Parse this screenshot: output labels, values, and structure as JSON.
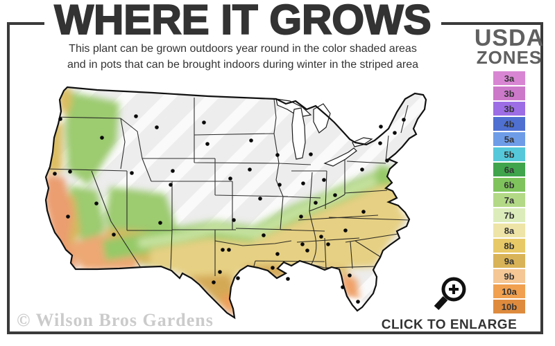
{
  "title": "WHERE IT GROWS",
  "subtitle": {
    "line1": "This plant can be grown outdoors year round in the color shaded areas",
    "line2": "and in pots that can be brought indoors during winter in the striped area"
  },
  "legend": {
    "heading_top": "USDA",
    "heading_bottom": "ZONES",
    "zones": [
      {
        "label": "3a",
        "color": "#d886d3"
      },
      {
        "label": "3b",
        "color": "#cc79ca"
      },
      {
        "label": "3b",
        "color": "#9c6de4"
      },
      {
        "label": "4b",
        "color": "#4f70d1"
      },
      {
        "label": "5a",
        "color": "#6f9ce7"
      },
      {
        "label": "5b",
        "color": "#55c9da"
      },
      {
        "label": "6a",
        "color": "#3fa44c"
      },
      {
        "label": "6b",
        "color": "#7fc35d"
      },
      {
        "label": "7a",
        "color": "#b3d987"
      },
      {
        "label": "7b",
        "color": "#dcedbb"
      },
      {
        "label": "8a",
        "color": "#eee4a7"
      },
      {
        "label": "8b",
        "color": "#e8c967"
      },
      {
        "label": "9a",
        "color": "#d9b357"
      },
      {
        "label": "9b",
        "color": "#f4c795"
      },
      {
        "label": "10a",
        "color": "#f0a04f"
      },
      {
        "label": "10b",
        "color": "#de8b3e"
      }
    ]
  },
  "map": {
    "palette": {
      "unshaded_striped": "#ededed",
      "stripe": "#ffffff",
      "green_band": "#96c968",
      "pale_green": "#c9e4a2",
      "yellow_band": "#e6d083",
      "gold_band": "#d4a957",
      "orange_band": "#ef9d59",
      "coast_salmon": "#eb9e70",
      "city_dot": "#0a0a0a",
      "border": "#1a1a1a"
    }
  },
  "cta": {
    "label": "CLICK TO ENLARGE",
    "icon": "magnifier-plus-icon"
  },
  "watermark": "© Wilson Bros Gardens"
}
